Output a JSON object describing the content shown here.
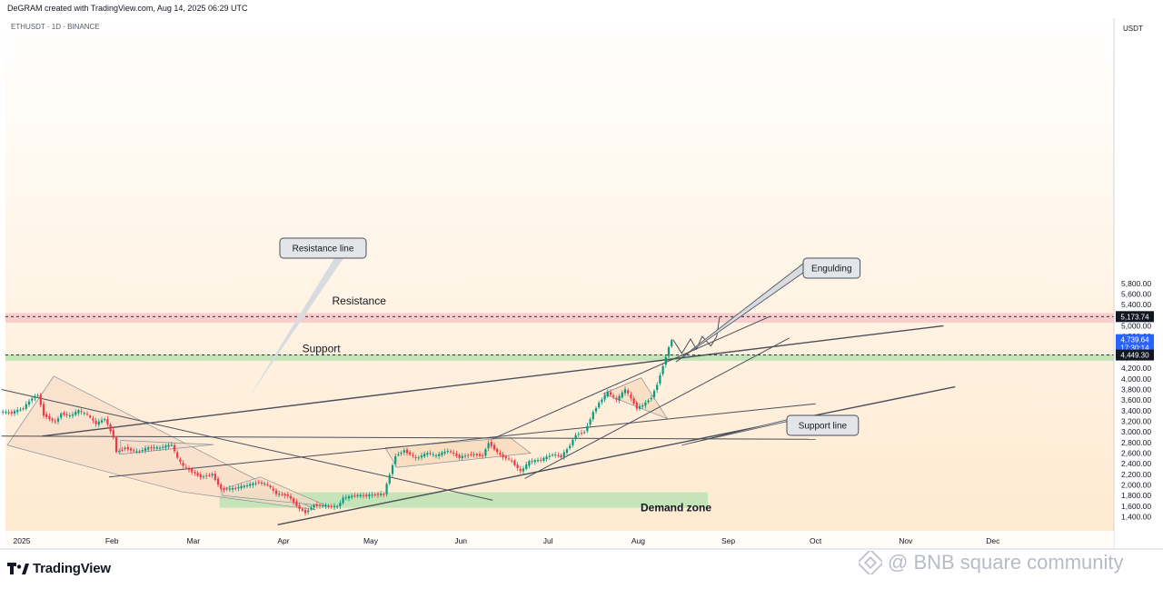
{
  "header": {
    "credit": "DeGRAM created with TradingView.com, Aug 14, 2025 06:29 UTC",
    "symbol": "ETHUSDT · 1D · BINANCE"
  },
  "footer": {
    "brand": "TradingView",
    "watermark": "@ BNB square community"
  },
  "colors": {
    "up": "#089981",
    "down": "#f23645",
    "resistance_zone": "#f8c9c9",
    "support_zone": "#bfe3b4",
    "demand_zone": "#bfe3b4",
    "trendline": "#4a4f5a",
    "current_price_badge": "#2962ff",
    "price_badge": "#131722"
  },
  "chart_data": {
    "type": "candlestick",
    "symbol": "ETHUSDT",
    "timeframe": "1D",
    "exchange": "BINANCE",
    "quote_label": "USDT",
    "ylim": [
      1240,
      6050
    ],
    "y_ticks": [
      1400,
      1600,
      1800,
      2000,
      2200,
      2400,
      2600,
      2800,
      3000,
      3200,
      3400,
      3600,
      3800,
      4000,
      4200,
      4400,
      4800,
      5000,
      5400,
      5600,
      5800
    ],
    "x_labels": [
      {
        "label": "2025",
        "date": "2025-01-01"
      },
      {
        "label": "Feb",
        "date": "2025-02-01"
      },
      {
        "label": "Mar",
        "date": "2025-03-01"
      },
      {
        "label": "Apr",
        "date": "2025-04-01"
      },
      {
        "label": "May",
        "date": "2025-05-01"
      },
      {
        "label": "Jun",
        "date": "2025-06-01"
      },
      {
        "label": "Jul",
        "date": "2025-07-01"
      },
      {
        "label": "Aug",
        "date": "2025-08-01"
      },
      {
        "label": "Sep",
        "date": "2025-09-01"
      },
      {
        "label": "Oct",
        "date": "2025-10-01"
      },
      {
        "label": "Nov",
        "date": "2025-11-01"
      },
      {
        "label": "Dec",
        "date": "2025-12-01"
      }
    ],
    "price_labels": {
      "resistance": "5,173.74",
      "current": "4,739.64",
      "countdown": "17:30:14",
      "support": "4,449.30"
    },
    "key_prices": {
      "resistance": 5173.74,
      "current": 4739.64,
      "support": 4449.3
    },
    "closes": [
      [
        "2024-12-25",
        3380
      ],
      [
        "2024-12-29",
        3360
      ],
      [
        "2025-01-02",
        3450
      ],
      [
        "2025-01-05",
        3640
      ],
      [
        "2025-01-07",
        3700
      ],
      [
        "2025-01-09",
        3320
      ],
      [
        "2025-01-13",
        3180
      ],
      [
        "2025-01-15",
        3350
      ],
      [
        "2025-01-18",
        3300
      ],
      [
        "2025-01-21",
        3400
      ],
      [
        "2025-01-24",
        3320
      ],
      [
        "2025-01-27",
        3150
      ],
      [
        "2025-01-30",
        3250
      ],
      [
        "2025-02-02",
        2900
      ],
      [
        "2025-02-03",
        2620
      ],
      [
        "2025-02-06",
        2700
      ],
      [
        "2025-02-10",
        2620
      ],
      [
        "2025-02-14",
        2700
      ],
      [
        "2025-02-18",
        2700
      ],
      [
        "2025-02-22",
        2760
      ],
      [
        "2025-02-24",
        2500
      ],
      [
        "2025-02-26",
        2350
      ],
      [
        "2025-03-01",
        2250
      ],
      [
        "2025-03-04",
        2150
      ],
      [
        "2025-03-08",
        2200
      ],
      [
        "2025-03-11",
        1920
      ],
      [
        "2025-03-15",
        1930
      ],
      [
        "2025-03-19",
        1980
      ],
      [
        "2025-03-24",
        2050
      ],
      [
        "2025-03-27",
        2000
      ],
      [
        "2025-03-30",
        1830
      ],
      [
        "2025-04-03",
        1800
      ],
      [
        "2025-04-07",
        1550
      ],
      [
        "2025-04-09",
        1480
      ],
      [
        "2025-04-12",
        1620
      ],
      [
        "2025-04-16",
        1600
      ],
      [
        "2025-04-20",
        1590
      ],
      [
        "2025-04-22",
        1750
      ],
      [
        "2025-04-26",
        1800
      ],
      [
        "2025-04-30",
        1800
      ],
      [
        "2025-05-04",
        1820
      ],
      [
        "2025-05-06",
        1830
      ],
      [
        "2025-05-08",
        2200
      ],
      [
        "2025-05-10",
        2550
      ],
      [
        "2025-05-13",
        2650
      ],
      [
        "2025-05-17",
        2500
      ],
      [
        "2025-05-21",
        2600
      ],
      [
        "2025-05-24",
        2550
      ],
      [
        "2025-05-28",
        2650
      ],
      [
        "2025-06-01",
        2520
      ],
      [
        "2025-06-05",
        2580
      ],
      [
        "2025-06-09",
        2550
      ],
      [
        "2025-06-11",
        2800
      ],
      [
        "2025-06-15",
        2560
      ],
      [
        "2025-06-19",
        2450
      ],
      [
        "2025-06-22",
        2250
      ],
      [
        "2025-06-25",
        2440
      ],
      [
        "2025-06-29",
        2470
      ],
      [
        "2025-07-03",
        2580
      ],
      [
        "2025-07-06",
        2530
      ],
      [
        "2025-07-09",
        2750
      ],
      [
        "2025-07-11",
        2950
      ],
      [
        "2025-07-14",
        3000
      ],
      [
        "2025-07-17",
        3370
      ],
      [
        "2025-07-19",
        3550
      ],
      [
        "2025-07-22",
        3750
      ],
      [
        "2025-07-25",
        3600
      ],
      [
        "2025-07-28",
        3800
      ],
      [
        "2025-08-01",
        3450
      ],
      [
        "2025-08-03",
        3500
      ],
      [
        "2025-08-06",
        3650
      ],
      [
        "2025-08-08",
        3900
      ],
      [
        "2025-08-10",
        4250
      ],
      [
        "2025-08-12",
        4600
      ],
      [
        "2025-08-13",
        4739.64
      ]
    ],
    "zones": [
      {
        "name": "Resistance",
        "label": "Resistance",
        "low": 5060,
        "high": 5240,
        "color": "#f8c9c9"
      },
      {
        "name": "Support",
        "label": "Support",
        "low": 4340,
        "high": 4460,
        "color": "#bfe3b4"
      },
      {
        "name": "Demand zone",
        "label": "Demand zone",
        "low": 1570,
        "high": 1860,
        "start": "2025-03-10",
        "end": "2025-08-25",
        "color": "#bfe3b4"
      }
    ],
    "trendlines": [
      {
        "name": "resistance-line",
        "from": [
          "2025-01-08",
          2920
        ],
        "to": [
          "2025-11-14",
          5000
        ]
      },
      {
        "name": "support-line",
        "from": [
          "2025-03-30",
          1250
        ],
        "to": [
          "2025-11-18",
          3850
        ]
      },
      {
        "name": "upper-channel",
        "from": [
          "2025-06-12",
          2870
        ],
        "to": [
          "2025-09-15",
          5170
        ]
      },
      {
        "name": "lower-channel",
        "from": [
          "2025-06-23",
          2120
        ],
        "to": [
          "2025-09-22",
          4770
        ]
      },
      {
        "name": "descending-line",
        "from": [
          "2024-12-25",
          3800
        ],
        "to": [
          "2025-06-12",
          1710
        ]
      },
      {
        "name": "rising-line",
        "from": [
          "2025-01-31",
          2150
        ],
        "to": [
          "2025-10-01",
          3530
        ]
      },
      {
        "name": "horizontal-line",
        "from": [
          "2024-12-25",
          2920
        ],
        "to": [
          "2025-10-01",
          2860
        ]
      }
    ],
    "annotations": [
      {
        "text": "Resistance line",
        "anchor": [
          "2025-03-02",
          3630
        ]
      },
      {
        "text": "Support line",
        "anchor": [
          "2025-08-21",
          2780
        ]
      },
      {
        "text": "Engulding",
        "anchor": [
          "2025-08-12",
          4290
        ]
      },
      {
        "text": "Resistance",
        "anchor": [
          "2025-04-27",
          5400
        ]
      },
      {
        "text": "Support",
        "anchor": [
          "2025-04-14",
          4500
        ]
      },
      {
        "text": "Demand zone",
        "anchor": [
          "2025-08-14",
          1500
        ]
      }
    ],
    "projection": [
      [
        "2025-08-13",
        4739.64
      ],
      [
        "2025-08-16",
        4480
      ],
      [
        "2025-08-19",
        4750
      ],
      [
        "2025-08-21",
        4560
      ],
      [
        "2025-08-23",
        4800
      ],
      [
        "2025-08-26",
        4620
      ],
      [
        "2025-08-28",
        4800
      ],
      [
        "2025-08-29",
        5173.74
      ]
    ]
  }
}
